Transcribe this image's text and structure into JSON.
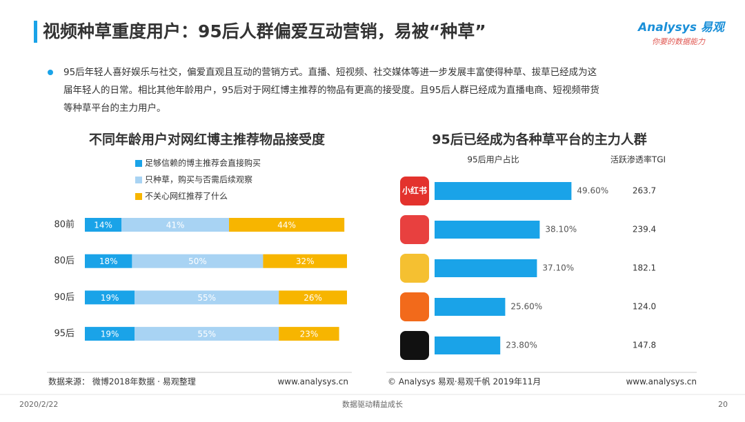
{
  "header": {
    "title": "视频种草重度用户：95后人群偏爱互动营销，易被“种草”",
    "logo": "Analysys 易观",
    "slogan": "你要的数据能力"
  },
  "bullet": {
    "lines": [
      "95后年轻人喜好娱乐与社交，偏爱直观且互动的营销方式。直播、短视频、社交媒体等进一步发展丰富使得种草、拔草已经成为这",
      "届年轻人的日常。相比其他年龄用户，95后对于网红博主推荐的物品有更高的接受度。且95后人群已经成为直播电商、短视频带货",
      "等种草平台的主力用户。"
    ]
  },
  "chart_data": [
    {
      "type": "stacked-bar",
      "title": "不同年龄用户对网红博主推荐物品接受度",
      "categories": [
        "80前",
        "80后",
        "90后",
        "95后"
      ],
      "xlim": [
        0,
        100
      ],
      "series": [
        {
          "name": "足够信赖的博主推荐会直接购买",
          "color": "#1aa3e8",
          "values": [
            14,
            18,
            19,
            19
          ],
          "value_labels": [
            "14%",
            "18%",
            "19%",
            "19%"
          ]
        },
        {
          "name": "只种草，购买与否需后续观察",
          "color": "#a8d3f3",
          "values": [
            41,
            50,
            55,
            55
          ],
          "value_labels": [
            "41%",
            "50%",
            "55%",
            "55%"
          ]
        },
        {
          "name": "不关心网红推荐了什么",
          "color": "#f7b500",
          "values": [
            44,
            32,
            26,
            23
          ],
          "value_labels": [
            "44%",
            "32%",
            "26%",
            "23%"
          ]
        }
      ],
      "source": "数据来源： 微博2018年数据 · 易观整理",
      "site": "www.analysys.cn"
    },
    {
      "type": "bar",
      "title": "95后已经成为各种草平台的主力人群",
      "categories": [
        "小红书",
        null,
        null,
        null,
        null
      ],
      "xlim": [
        0,
        50
      ],
      "series": [
        {
          "name": "95后用户占比",
          "color": "#1aa3e8",
          "values": [
            49.6,
            38.1,
            37.1,
            25.6,
            23.8
          ],
          "value_labels": [
            "49.60%",
            "38.10%",
            "37.10%",
            "25.60%",
            "23.80%"
          ]
        },
        {
          "name": "活跃渗透率TGI",
          "values": [
            263.7,
            239.4,
            182.1,
            124.0,
            147.8
          ],
          "value_labels": [
            "263.7",
            "239.4",
            "182.1",
            "124.0",
            "147.8"
          ]
        }
      ],
      "source": "© Analysys 易观·易观千帆 2019年11月",
      "site": "www.analysys.cn"
    }
  ],
  "footer": {
    "date": "2020/2/22",
    "motto": "数据驱动精益成长",
    "page": "20"
  }
}
